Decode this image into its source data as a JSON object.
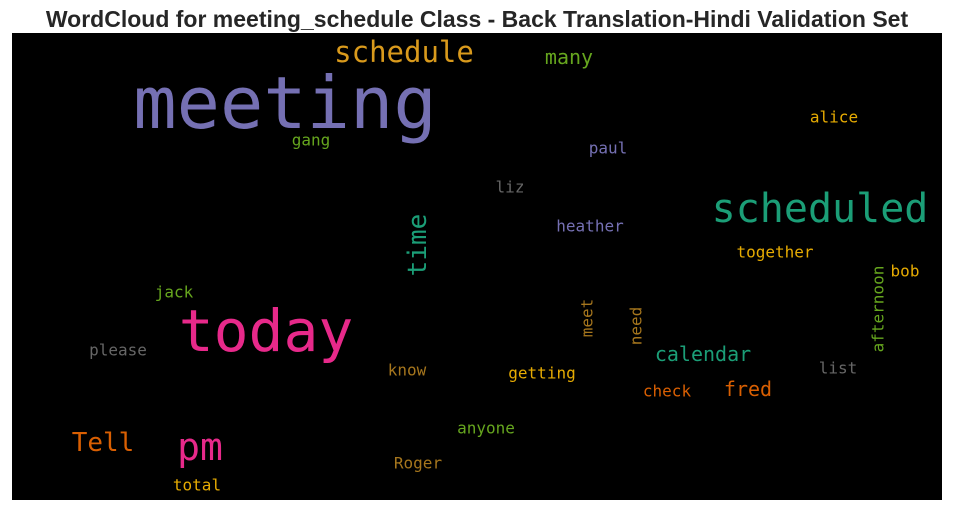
{
  "chart_data": {
    "type": "wordcloud",
    "title": "WordCloud for meeting_schedule Class - Back Translation-Hindi Validation Set",
    "words": [
      {
        "text": "meeting",
        "color": "#7570b3"
      },
      {
        "text": "schedule",
        "color": "#d99a1c"
      },
      {
        "text": "many",
        "color": "#66a61e"
      },
      {
        "text": "alice",
        "color": "#e6ab02"
      },
      {
        "text": "gang",
        "color": "#66a61e"
      },
      {
        "text": "paul",
        "color": "#7570b3"
      },
      {
        "text": "liz",
        "color": "#666666"
      },
      {
        "text": "scheduled",
        "color": "#1b9e77"
      },
      {
        "text": "time",
        "color": "#1b9e77"
      },
      {
        "text": "heather",
        "color": "#7570b3"
      },
      {
        "text": "together",
        "color": "#e6ab02"
      },
      {
        "text": "bob",
        "color": "#e6ab02"
      },
      {
        "text": "afternoon",
        "color": "#66a61e"
      },
      {
        "text": "jack",
        "color": "#66a61e"
      },
      {
        "text": "today",
        "color": "#e7298a"
      },
      {
        "text": "meet",
        "color": "#a6761d"
      },
      {
        "text": "need",
        "color": "#a6761d"
      },
      {
        "text": "please",
        "color": "#666666"
      },
      {
        "text": "calendar",
        "color": "#1b9e77"
      },
      {
        "text": "know",
        "color": "#a6761d"
      },
      {
        "text": "getting",
        "color": "#e6ab02"
      },
      {
        "text": "list",
        "color": "#666666"
      },
      {
        "text": "fred",
        "color": "#d95f02"
      },
      {
        "text": "check",
        "color": "#d95f02"
      },
      {
        "text": "Tell",
        "color": "#d95f02"
      },
      {
        "text": "pm",
        "color": "#e7298a"
      },
      {
        "text": "anyone",
        "color": "#66a61e"
      },
      {
        "text": "Roger",
        "color": "#a6761d"
      },
      {
        "text": "total",
        "color": "#e6ab02"
      }
    ]
  }
}
